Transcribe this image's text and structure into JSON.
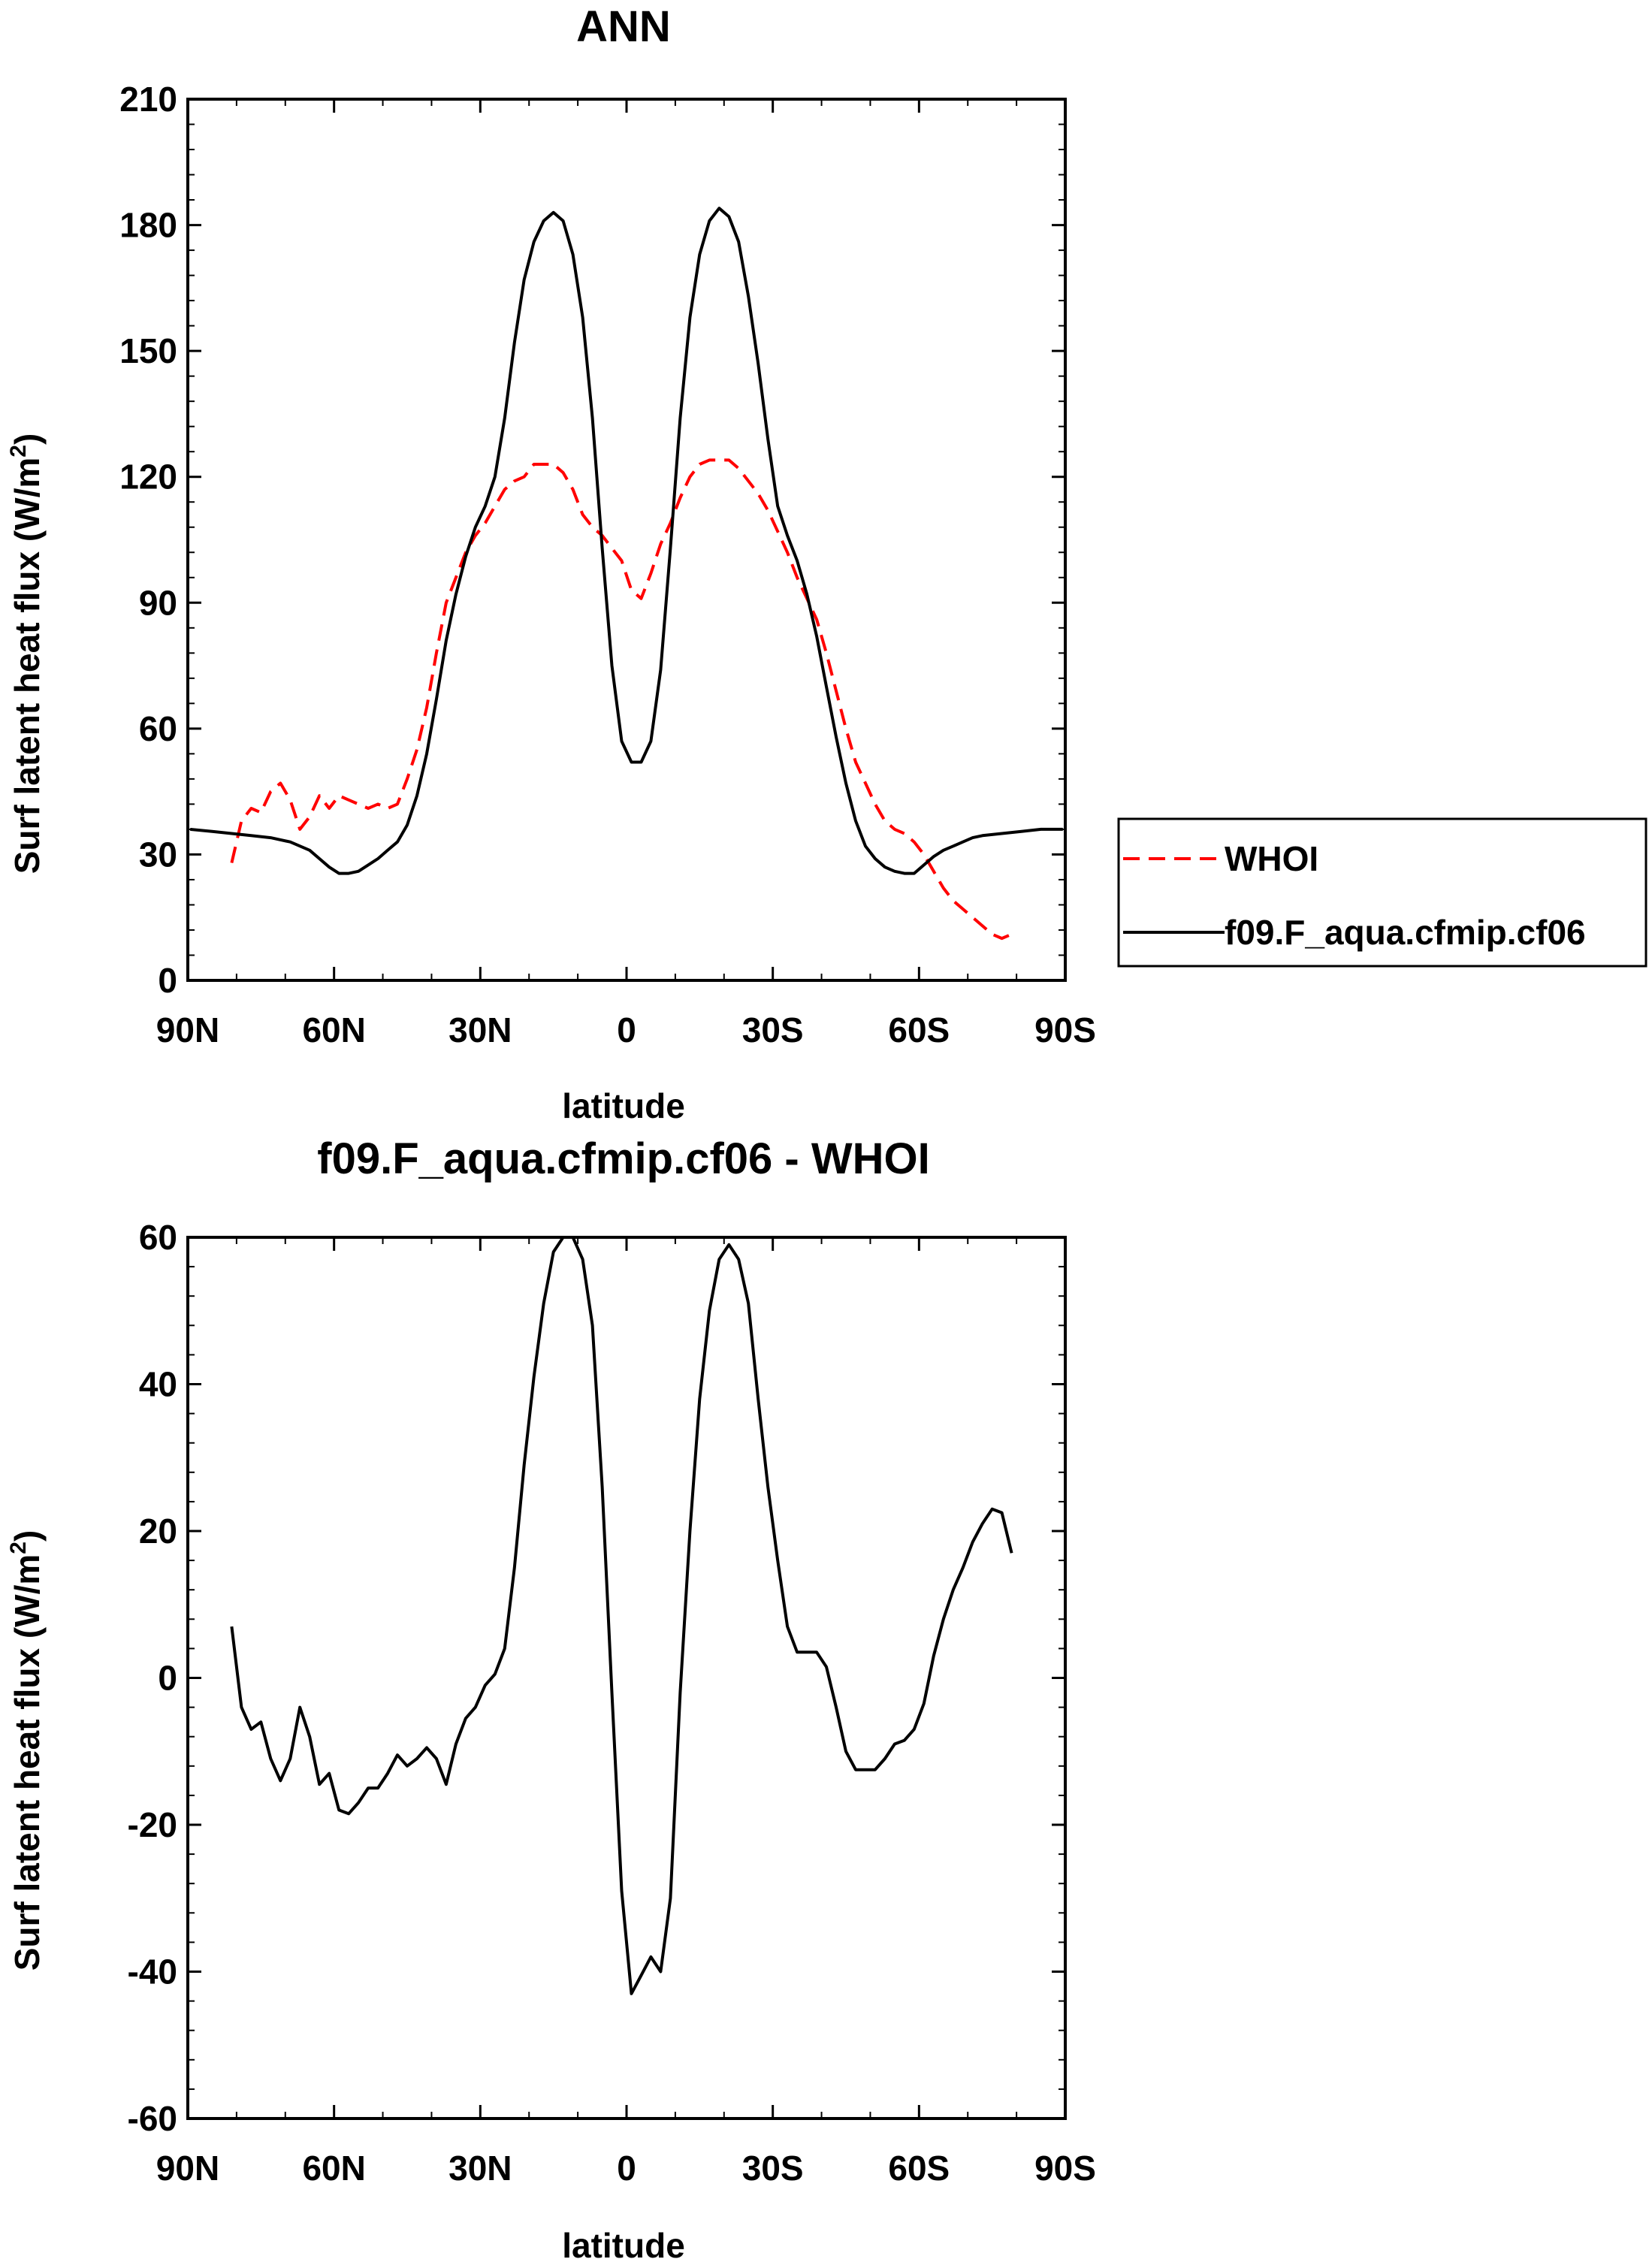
{
  "chart_data": [
    {
      "type": "line",
      "title": "ANN",
      "xlabel": "latitude",
      "ylabel": "Surf latent heat flux (W/m",
      "ylabel_superscript": "2",
      "ylabel_close": ")",
      "xlim": [
        90,
        -90
      ],
      "ylim": [
        0,
        210
      ],
      "xticks": [
        90,
        60,
        30,
        0,
        -30,
        -60,
        -90
      ],
      "xtick_labels": [
        "90N",
        "60N",
        "30N",
        "0",
        "30S",
        "60S",
        "90S"
      ],
      "yticks": [
        0,
        30,
        60,
        90,
        120,
        150,
        180,
        210
      ],
      "ytick_labels": [
        "0",
        "30",
        "60",
        "90",
        "120",
        "150",
        "180",
        "210"
      ],
      "legend": {
        "position": "right",
        "entries": [
          "WHOI",
          "f09.F_aqua.cfmip.cf06"
        ]
      },
      "series": [
        {
          "name": "WHOI",
          "color": "#ff0000",
          "dash": true,
          "x": [
            81,
            79,
            77,
            75,
            73,
            71,
            69,
            67,
            65,
            63,
            61,
            59,
            57,
            55,
            53,
            51,
            49,
            47,
            45,
            43,
            41,
            39,
            37,
            35,
            33,
            31,
            29,
            27,
            25,
            23,
            21,
            19,
            17,
            15,
            13,
            11,
            9,
            7,
            5,
            3,
            1,
            -1,
            -3,
            -5,
            -7,
            -9,
            -11,
            -13,
            -15,
            -17,
            -19,
            -21,
            -23,
            -25,
            -27,
            -29,
            -31,
            -33,
            -35,
            -37,
            -39,
            -41,
            -43,
            -45,
            -47,
            -49,
            -51,
            -53,
            -55,
            -57,
            -59,
            -61,
            -63,
            -65,
            -67,
            -69,
            -71,
            -73,
            -75,
            -77,
            -79
          ],
          "y": [
            28,
            38,
            41,
            40,
            45,
            47,
            43,
            36,
            39,
            44,
            41,
            44,
            43,
            42,
            41,
            42,
            41,
            42,
            48,
            55,
            65,
            78,
            90,
            96,
            102,
            106,
            109,
            113,
            117,
            119,
            120,
            123,
            123,
            123,
            121,
            117,
            111,
            108,
            106,
            103,
            100,
            93,
            91,
            97,
            104,
            109,
            115,
            120,
            123,
            124,
            124,
            124,
            122,
            119,
            116,
            112,
            107,
            102,
            96,
            91,
            86,
            78,
            69,
            60,
            52,
            47,
            42,
            38,
            36,
            35,
            33,
            30,
            26,
            22,
            19,
            17,
            15,
            13,
            11,
            10,
            11
          ]
        },
        {
          "name": "f09.F_aqua.cfmip.cf06",
          "color": "#000000",
          "dash": false,
          "x": [
            89.5,
            85,
            81,
            77,
            73,
            69,
            65,
            63,
            61,
            59,
            57,
            55,
            53,
            51,
            49,
            47,
            45,
            43,
            41,
            39,
            37,
            35,
            33,
            31,
            29,
            27,
            25,
            23,
            21,
            19,
            17,
            15,
            13,
            11,
            9,
            7,
            5,
            3,
            1,
            -1,
            -3,
            -5,
            -7,
            -9,
            -11,
            -13,
            -15,
            -17,
            -19,
            -21,
            -23,
            -25,
            -27,
            -29,
            -31,
            -33,
            -35,
            -37,
            -39,
            -41,
            -43,
            -45,
            -47,
            -49,
            -51,
            -53,
            -55,
            -57,
            -59,
            -61,
            -63,
            -65,
            -67,
            -69,
            -71,
            -73,
            -77,
            -81,
            -85,
            -89.5
          ],
          "y": [
            36,
            35.5,
            35,
            34.5,
            34,
            33,
            31,
            29,
            27,
            25.5,
            25.5,
            26,
            27.5,
            29,
            31,
            33,
            37,
            44,
            54,
            67,
            81,
            92,
            101,
            108,
            113,
            120,
            134,
            152,
            167,
            176,
            181,
            183,
            181,
            173,
            158,
            134,
            103,
            75,
            57,
            52,
            52,
            57,
            74,
            103,
            134,
            158,
            173,
            181,
            184,
            182,
            176,
            163,
            147,
            129,
            113,
            106,
            100,
            92,
            82,
            70,
            58,
            47,
            38,
            32,
            29,
            27,
            26,
            25.5,
            25.5,
            27.5,
            29.5,
            31,
            32,
            33,
            34,
            34.5,
            35,
            35.5,
            36,
            36
          ]
        }
      ]
    },
    {
      "type": "line",
      "title": "f09.F_aqua.cfmip.cf06 - WHOI",
      "xlabel": "latitude",
      "ylabel": "Surf latent heat flux (W/m",
      "ylabel_superscript": "2",
      "ylabel_close": ")",
      "xlim": [
        90,
        -90
      ],
      "ylim": [
        -60,
        60
      ],
      "xticks": [
        90,
        60,
        30,
        0,
        -30,
        -60,
        -90
      ],
      "xtick_labels": [
        "90N",
        "60N",
        "30N",
        "0",
        "30S",
        "60S",
        "90S"
      ],
      "yticks": [
        -60,
        -40,
        -20,
        0,
        20,
        40,
        60
      ],
      "ytick_labels": [
        "-60",
        "-40",
        "-20",
        "0",
        "20",
        "40",
        "60"
      ],
      "series": [
        {
          "name": "f09.F_aqua.cfmip.cf06 - WHOI",
          "color": "#000000",
          "dash": false,
          "x": [
            81,
            79,
            77,
            75,
            73,
            71,
            69,
            67,
            65,
            63,
            61,
            59,
            57,
            55,
            53,
            51,
            49,
            47,
            45,
            43,
            41,
            39,
            37,
            35,
            33,
            31,
            29,
            27,
            25,
            23,
            21,
            19,
            17,
            15,
            13,
            11,
            9,
            7,
            5,
            3,
            1,
            -1,
            -3,
            -5,
            -7,
            -9,
            -11,
            -13,
            -15,
            -17,
            -19,
            -21,
            -23,
            -25,
            -27,
            -29,
            -31,
            -33,
            -35,
            -37,
            -39,
            -41,
            -43,
            -45,
            -47,
            -49,
            -51,
            -53,
            -55,
            -57,
            -59,
            -61,
            -63,
            -65,
            -67,
            -69,
            -71,
            -73,
            -75,
            -77,
            -79
          ],
          "y": [
            7,
            -4,
            -7,
            -6,
            -11,
            -14,
            -11,
            -4,
            -8,
            -14.5,
            -13,
            -18,
            -18.5,
            -17,
            -15,
            -15,
            -13,
            -10.5,
            -12,
            -11,
            -9.5,
            -11,
            -14.5,
            -9,
            -5.5,
            -4,
            -1,
            0.5,
            4,
            15,
            29,
            41,
            51,
            58,
            60,
            60,
            57,
            48,
            26,
            -2,
            -29,
            -43,
            -40.5,
            -38,
            -40,
            -30,
            -2,
            20,
            38,
            50,
            57,
            59,
            57,
            51,
            38,
            26,
            16,
            7,
            3.5,
            3.5,
            3.5,
            1.5,
            -4,
            -10,
            -12.5,
            -12.5,
            -12.5,
            -11,
            -9,
            -8.5,
            -7,
            -3.5,
            3,
            8,
            12,
            15,
            18.5,
            21,
            23,
            22.5,
            17
          ]
        }
      ]
    }
  ]
}
